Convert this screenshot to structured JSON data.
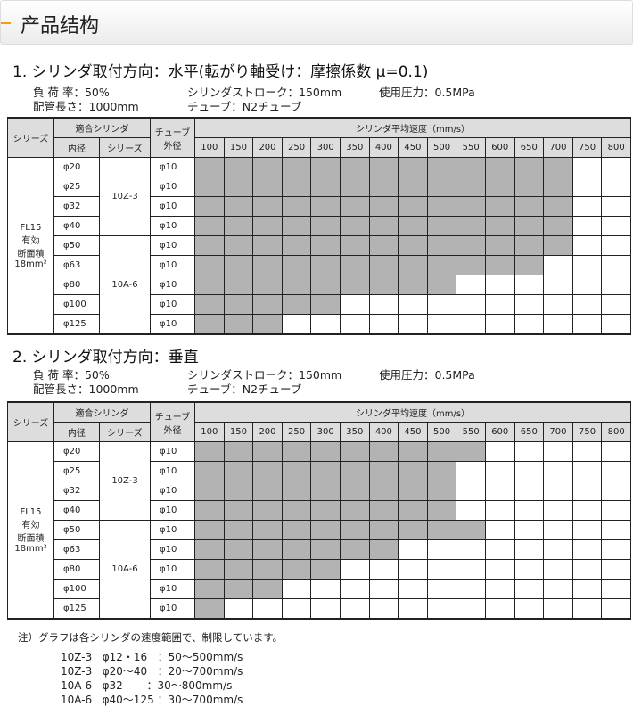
{
  "header": {
    "title": "产品结构",
    "accent": "#f0a000"
  },
  "speeds": [
    "100",
    "150",
    "200",
    "250",
    "300",
    "350",
    "400",
    "450",
    "500",
    "550",
    "600",
    "650",
    "700",
    "750",
    "800"
  ],
  "table_headers": {
    "series": "シリーズ",
    "cylinder": "適合シリンダ",
    "bore": "内径",
    "cyl_series": "シリーズ",
    "tube_l1": "チューブ",
    "tube_l2": "外径",
    "speed": "シリンダ平均速度（mm/s）"
  },
  "series_label": [
    "FL15",
    "有効",
    "断面積",
    "18mm²"
  ],
  "sections": [
    {
      "title": "1. シリンダ取付方向：水平(転がり軸受け：摩擦係数 μ=0.1)",
      "conditions": {
        "load": "負 荷 率：50%",
        "stroke": "シリンダストローク：150mm",
        "pressure": "使用圧力：0.5MPa",
        "pipe": "配管長さ：1000mm",
        "tube": "チューブ：N2チューブ"
      },
      "rows": [
        {
          "bore": "φ20",
          "series": "10Z-3",
          "tube": "φ10",
          "max_speed": 700
        },
        {
          "bore": "φ25",
          "series": "10Z-3",
          "tube": "φ10",
          "max_speed": 700
        },
        {
          "bore": "φ32",
          "series": "10Z-3",
          "tube": "φ10",
          "max_speed": 700
        },
        {
          "bore": "φ40",
          "series": "10Z-3",
          "tube": "φ10",
          "max_speed": 700
        },
        {
          "bore": "φ50",
          "series": "10A-6",
          "tube": "φ10",
          "max_speed": 700
        },
        {
          "bore": "φ63",
          "series": "10A-6",
          "tube": "φ10",
          "max_speed": 650
        },
        {
          "bore": "φ80",
          "series": "10A-6",
          "tube": "φ10",
          "max_speed": 500
        },
        {
          "bore": "φ100",
          "series": "10A-6",
          "tube": "φ10",
          "max_speed": 300
        },
        {
          "bore": "φ125",
          "series": "10A-6",
          "tube": "φ10",
          "max_speed": 200
        }
      ]
    },
    {
      "title": "2. シリンダ取付方向：垂直",
      "conditions": {
        "load": "負 荷 率：50%",
        "stroke": "シリンダストローク：150mm",
        "pressure": "使用圧力：0.5MPa",
        "pipe": "配管長さ：1000mm",
        "tube": "チューブ：N2チューブ"
      },
      "rows": [
        {
          "bore": "φ20",
          "series": "10Z-3",
          "tube": "φ10",
          "max_speed": 550
        },
        {
          "bore": "φ25",
          "series": "10Z-3",
          "tube": "φ10",
          "max_speed": 500
        },
        {
          "bore": "φ32",
          "series": "10Z-3",
          "tube": "φ10",
          "max_speed": 500
        },
        {
          "bore": "φ40",
          "series": "10Z-3",
          "tube": "φ10",
          "max_speed": 500
        },
        {
          "bore": "φ50",
          "series": "10A-6",
          "tube": "φ10",
          "max_speed": 550
        },
        {
          "bore": "φ63",
          "series": "10A-6",
          "tube": "φ10",
          "max_speed": 400
        },
        {
          "bore": "φ80",
          "series": "10A-6",
          "tube": "φ10",
          "max_speed": 300
        },
        {
          "bore": "φ100",
          "series": "10A-6",
          "tube": "φ10",
          "max_speed": 200
        },
        {
          "bore": "φ125",
          "series": "10A-6",
          "tube": "φ10",
          "max_speed": 100
        }
      ]
    }
  ],
  "notes": {
    "title": "注）グラフは各シリンダの速度範囲で、制限しています。",
    "lines": [
      "10Z-3   φ12・16   ：50～500mm/s",
      "10Z-3   φ20～40   ：20～700mm/s",
      "10A-6   φ32       ：30～800mm/s",
      "10A-6   φ40～125 ：30～700mm/s"
    ]
  },
  "shade_color": "#b3b3b3"
}
